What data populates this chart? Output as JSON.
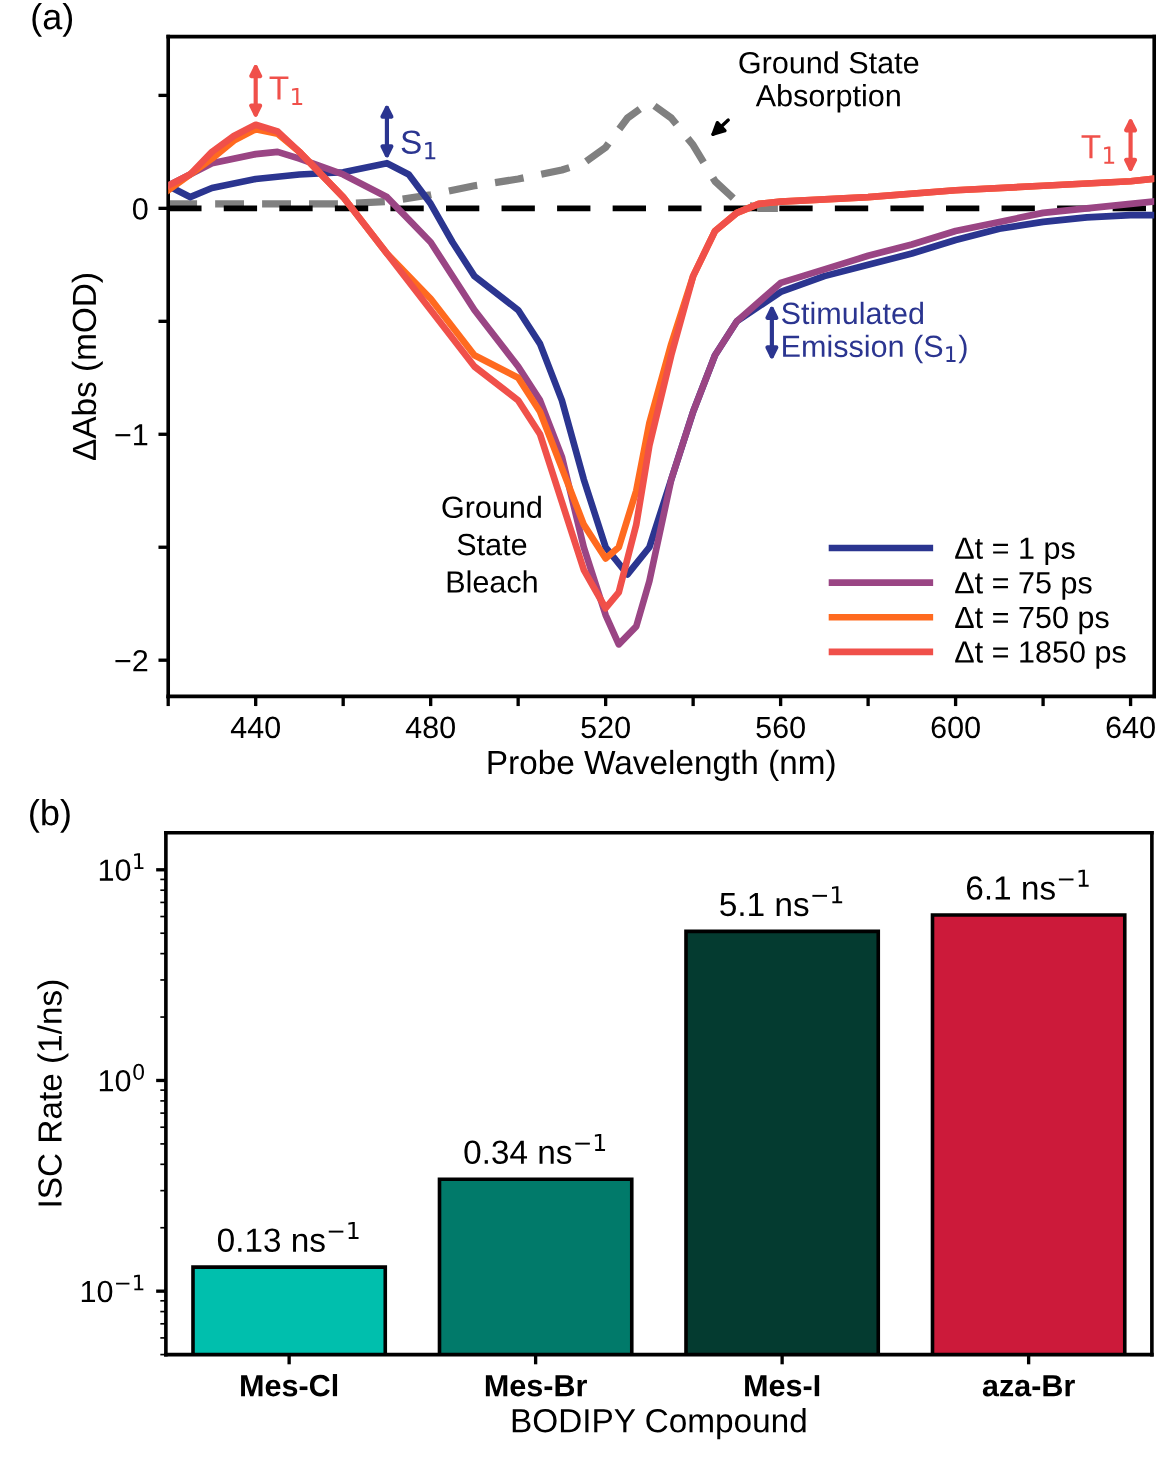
{
  "chart_data": [
    {
      "type": "line",
      "xlabel": "Probe Wavelength (nm)",
      "ylabel": "ΔAbs (mOD)",
      "xlim": [
        420,
        645.4
      ],
      "ylim": [
        -2.16,
        0.76
      ],
      "xticks": [
        {
          "value": 420,
          "label": null
        },
        440,
        {
          "value": 460,
          "label": null
        },
        480,
        {
          "value": 500,
          "label": null
        },
        520,
        {
          "value": 540,
          "label": null
        },
        560,
        {
          "value": 580,
          "label": null
        },
        600,
        {
          "value": 620,
          "label": null
        },
        640
      ],
      "yticks": [
        {
          "value": 0.5,
          "label": null
        },
        0,
        {
          "value": -0.5,
          "label": null
        },
        -1,
        {
          "value": -1.5,
          "label": null
        },
        -2
      ],
      "grid": false,
      "legend": "bottom right",
      "marker": "none",
      "ref_lines": [
        {
          "axis": "y",
          "value": 0,
          "label": null,
          "color": "#000000",
          "line_style": "dashed"
        }
      ],
      "series": [
        {
          "name": "Δt = 1 ps",
          "color": "#2b3590",
          "x": [
            420,
            425,
            430,
            440,
            450,
            460,
            470,
            475,
            480,
            485,
            490,
            500,
            505,
            510,
            515,
            520,
            525,
            530,
            535,
            540,
            545,
            550,
            560,
            570,
            580,
            590,
            600,
            610,
            620,
            630,
            640,
            645
          ],
          "values": [
            0.1,
            0.05,
            0.09,
            0.13,
            0.15,
            0.16,
            0.2,
            0.15,
            0.02,
            -0.15,
            -0.3,
            -0.45,
            -0.6,
            -0.85,
            -1.2,
            -1.5,
            -1.62,
            -1.5,
            -1.2,
            -0.9,
            -0.65,
            -0.5,
            -0.37,
            -0.3,
            -0.25,
            -0.2,
            -0.14,
            -0.09,
            -0.06,
            -0.04,
            -0.03,
            -0.03
          ]
        },
        {
          "name": "Δt = 75 ps",
          "color": "#9a4584",
          "x": [
            420,
            430,
            440,
            445,
            450,
            460,
            470,
            475,
            480,
            490,
            500,
            505,
            510,
            515,
            520,
            523,
            527,
            530,
            535,
            540,
            545,
            550,
            560,
            570,
            580,
            590,
            600,
            610,
            620,
            630,
            640,
            645
          ],
          "values": [
            0.1,
            0.2,
            0.24,
            0.25,
            0.22,
            0.15,
            0.05,
            -0.05,
            -0.15,
            -0.45,
            -0.7,
            -0.85,
            -1.1,
            -1.5,
            -1.8,
            -1.93,
            -1.85,
            -1.65,
            -1.2,
            -0.9,
            -0.65,
            -0.5,
            -0.33,
            -0.27,
            -0.21,
            -0.16,
            -0.1,
            -0.06,
            -0.02,
            0.0,
            0.02,
            0.03
          ]
        },
        {
          "name": "Δt = 750 ps",
          "color": "#ff6a1f",
          "x": [
            420,
            425,
            430,
            435,
            440,
            445,
            450,
            460,
            470,
            480,
            490,
            500,
            505,
            510,
            515,
            520,
            523,
            527,
            530,
            535,
            540,
            545,
            550,
            555,
            560,
            580,
            600,
            620,
            640,
            645
          ],
          "values": [
            0.08,
            0.15,
            0.22,
            0.3,
            0.35,
            0.33,
            0.25,
            0.05,
            -0.2,
            -0.4,
            -0.65,
            -0.75,
            -0.9,
            -1.15,
            -1.4,
            -1.55,
            -1.5,
            -1.25,
            -0.95,
            -0.6,
            -0.3,
            -0.1,
            -0.02,
            0.02,
            0.03,
            0.05,
            0.08,
            0.1,
            0.12,
            0.13
          ]
        },
        {
          "name": "Δt = 1850 ps",
          "color": "#f0504a",
          "x": [
            420,
            425,
            430,
            435,
            440,
            445,
            450,
            460,
            470,
            480,
            490,
            500,
            505,
            510,
            515,
            520,
            523,
            527,
            530,
            535,
            540,
            545,
            550,
            555,
            560,
            580,
            600,
            620,
            640,
            645
          ],
          "values": [
            0.1,
            0.15,
            0.25,
            0.32,
            0.37,
            0.34,
            0.25,
            0.05,
            -0.2,
            -0.45,
            -0.7,
            -0.85,
            -1.0,
            -1.3,
            -1.6,
            -1.77,
            -1.7,
            -1.4,
            -1.05,
            -0.65,
            -0.3,
            -0.1,
            -0.02,
            0.02,
            0.03,
            0.05,
            0.08,
            0.1,
            0.12,
            0.13
          ]
        },
        {
          "color": "#808080",
          "line_style": "dashed",
          "x": [
            420,
            440,
            460,
            470,
            480,
            490,
            500,
            510,
            515,
            520,
            525,
            530,
            535,
            540,
            545,
            550,
            555,
            560
          ],
          "values": [
            0.02,
            0.02,
            0.02,
            0.03,
            0.06,
            0.1,
            0.13,
            0.17,
            0.2,
            0.27,
            0.4,
            0.47,
            0.4,
            0.28,
            0.12,
            0.03,
            0.0,
            0.0
          ]
        }
      ],
      "annotations": [
        "(a)",
        "T$_{1}$",
        "S$_{1}$",
        {
          "text": "Ground State\nAbsorption",
          "x": 543,
          "y": 0.3
        },
        "T$_{1}$",
        "Stimulated\nEmission (S$_{1}$)",
        "Ground\nState\nBleach"
      ]
    },
    {
      "type": "bar",
      "xlabel": "BODIPY Compound",
      "ylabel": "ISC Rate (1/ns)",
      "log": "y",
      "categories": [
        "Mes-Cl",
        "Mes-Br",
        "Mes-I",
        "aza-Br"
      ],
      "values": [
        0.13,
        0.34,
        5.1,
        6.1
      ],
      "colors": [
        "#00bfad",
        "#017a6a",
        "#043b30",
        "#cc1a3a"
      ],
      "value_labels": [
        "0.13 ns$^{−1}$",
        "0.34 ns$^{−1}$",
        "5.1 ns$^{−1}$",
        "6.1 ns$^{−1}$"
      ],
      "ylim": [
        0.05,
        15
      ],
      "yticks": [
        {
          "value": 0.1,
          "label": "10$^{−1}$"
        },
        {
          "value": 1,
          "label": "10$^{0}$"
        },
        {
          "value": 10,
          "label": "10$^{1}$"
        }
      ],
      "grid": false,
      "annotations": [
        "(b)"
      ]
    }
  ]
}
